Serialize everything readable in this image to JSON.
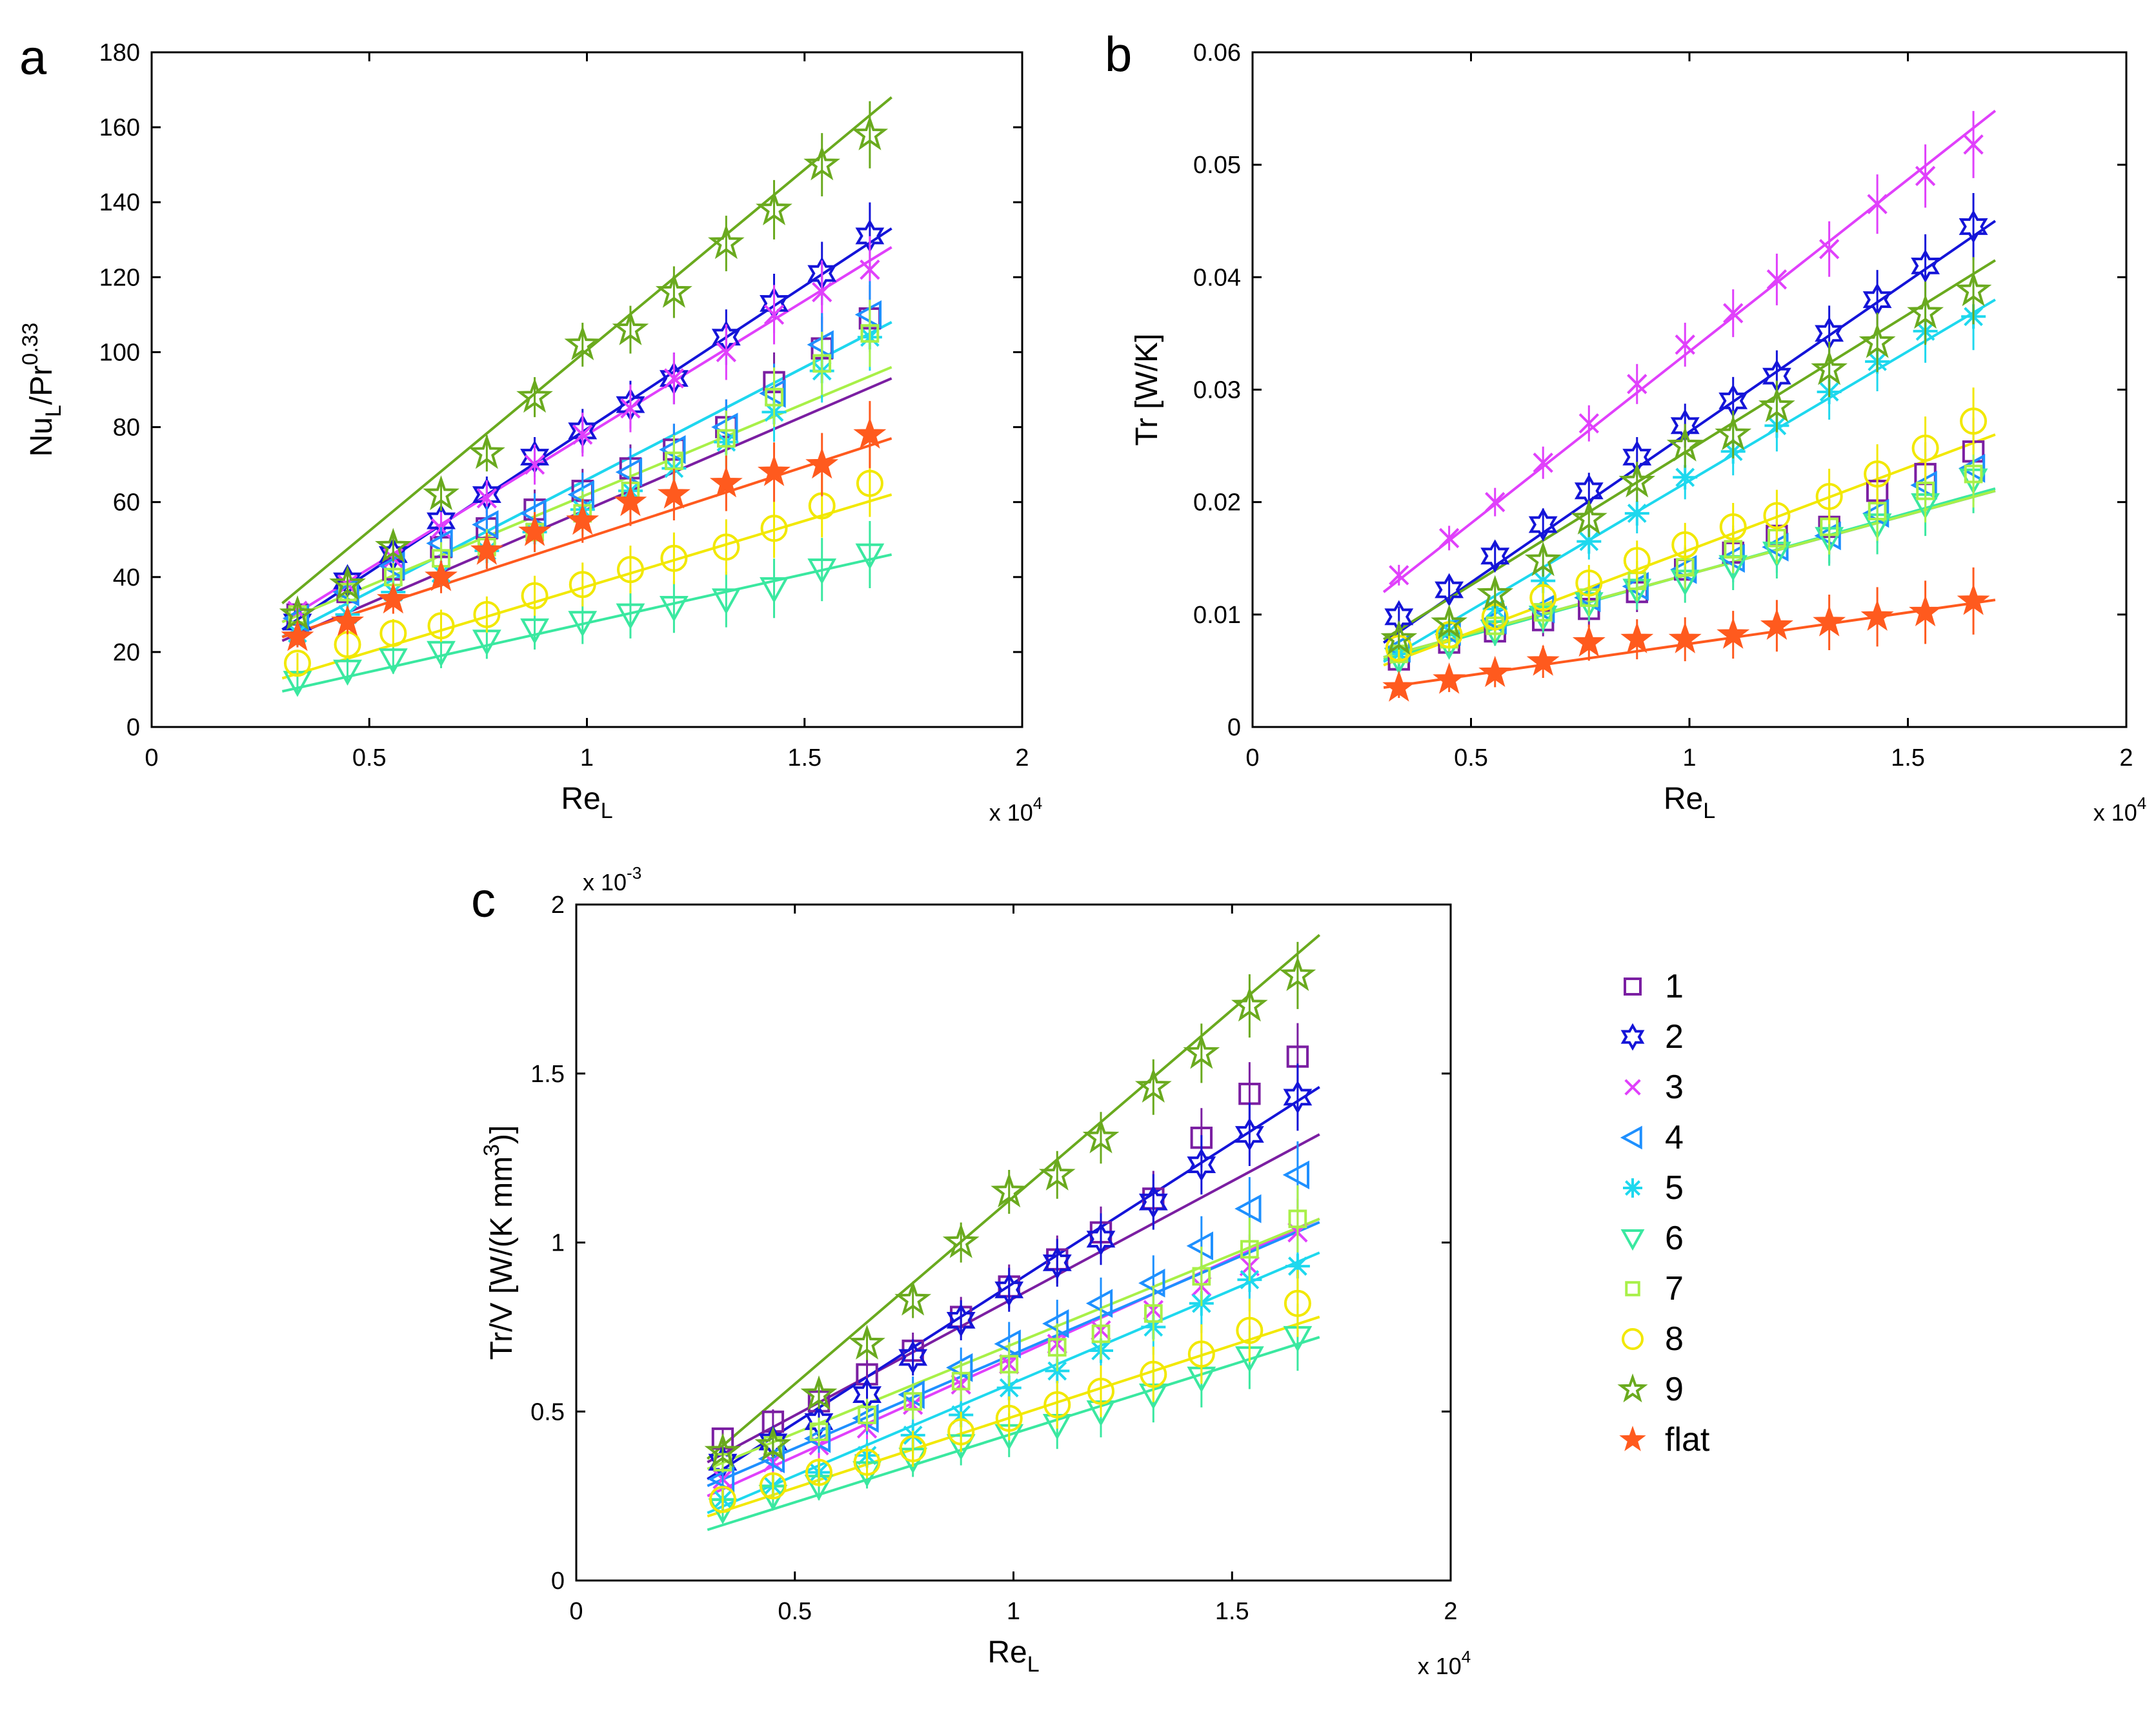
{
  "chart_data": [
    {
      "panel": "a",
      "type": "scatter",
      "xlabel": "Re",
      "xlabel_sub": "L",
      "x_exponent": "x 10",
      "x_exponent_power": "4",
      "ylabel": "Nu",
      "ylabel_sub": "L",
      "ylabel_mid": "/Pr",
      "ylabel_sup": "0.33",
      "xlim": [
        0,
        2
      ],
      "ylim": [
        0,
        180
      ],
      "xticks": [
        0,
        0.5,
        1,
        1.5,
        2
      ],
      "xtick_labels": [
        "0",
        "0.5",
        "1",
        "1.5",
        "2"
      ],
      "yticks": [
        0,
        20,
        40,
        60,
        80,
        100,
        120,
        140,
        160,
        180
      ],
      "ytick_labels": [
        "0",
        "20",
        "40",
        "60",
        "80",
        "100",
        "120",
        "140",
        "160",
        "180"
      ],
      "x": [
        0.335,
        0.45,
        0.555,
        0.665,
        0.77,
        0.88,
        0.99,
        1.1,
        1.2,
        1.32,
        1.43,
        1.54,
        1.65
      ],
      "series": [
        {
          "name": "1",
          "values": [
            30,
            36,
            42,
            48,
            53,
            58,
            63,
            69,
            74,
            80,
            92,
            101,
            109
          ],
          "fit": [
            0.3,
            23,
            1.7,
            93
          ]
        },
        {
          "name": "2",
          "values": [
            28,
            39,
            46,
            55,
            62,
            72,
            79,
            86,
            93,
            104,
            113,
            121,
            131
          ],
          "fit": [
            0.3,
            26,
            1.7,
            133
          ]
        },
        {
          "name": "3",
          "values": [
            31,
            38,
            45,
            53,
            61,
            70,
            78,
            85,
            93,
            100,
            110,
            116,
            122
          ],
          "fit": [
            0.3,
            28,
            1.7,
            128
          ]
        },
        {
          "name": "4",
          "values": [
            29,
            36,
            43,
            49,
            54,
            57,
            62,
            68,
            74,
            80,
            89,
            102,
            110
          ],
          "fit": [
            0.3,
            24,
            1.7,
            108
          ]
        },
        {
          "name": "5",
          "values": [
            25,
            30,
            36,
            41,
            47,
            52,
            58,
            63,
            69,
            76,
            84,
            95,
            104
          ],
          "fit": [
            0.3,
            24,
            1.7,
            108
          ]
        },
        {
          "name": "6",
          "values": [
            12,
            15,
            18,
            20,
            23,
            26,
            28,
            30,
            32,
            34,
            37,
            42,
            46
          ],
          "fit": [
            0.3,
            9.5,
            1.7,
            46
          ]
        },
        {
          "name": "7",
          "values": [
            30,
            36,
            40,
            45,
            48,
            52,
            57,
            63,
            71,
            77,
            88,
            97,
            105
          ],
          "fit": [
            0.3,
            28,
            1.7,
            96
          ]
        },
        {
          "name": "8",
          "values": [
            17,
            22,
            25,
            27,
            30,
            35,
            38,
            42,
            45,
            48,
            53,
            59,
            65
          ],
          "fit": [
            0.3,
            13,
            1.7,
            62
          ]
        },
        {
          "name": "9",
          "values": [
            30,
            38,
            48,
            62,
            73,
            88,
            102,
            106,
            116,
            129,
            138,
            150,
            158
          ],
          "fit": [
            0.3,
            33,
            1.7,
            168
          ]
        },
        {
          "name": "flat",
          "values": [
            24,
            28,
            34,
            40,
            47,
            52,
            55,
            60,
            62,
            65,
            68,
            70,
            78
          ],
          "fit": [
            0.3,
            24,
            1.7,
            77
          ]
        }
      ]
    },
    {
      "panel": "b",
      "type": "scatter",
      "xlabel": "Re",
      "xlabel_sub": "L",
      "x_exponent": "x 10",
      "x_exponent_power": "4",
      "ylabel": "Tr [W/K]",
      "xlim": [
        0,
        2
      ],
      "ylim": [
        0,
        0.06
      ],
      "xticks": [
        0,
        0.5,
        1,
        1.5,
        2
      ],
      "xtick_labels": [
        "0",
        "0.5",
        "1",
        "1.5",
        "2"
      ],
      "yticks": [
        0,
        0.01,
        0.02,
        0.03,
        0.04,
        0.05,
        0.06
      ],
      "ytick_labels": [
        "0",
        "0.01",
        "0.02",
        "0.03",
        "0.04",
        "0.05",
        "0.06"
      ],
      "x": [
        0.335,
        0.45,
        0.555,
        0.665,
        0.77,
        0.88,
        0.99,
        1.1,
        1.2,
        1.32,
        1.43,
        1.54,
        1.65
      ],
      "series": [
        {
          "name": "1",
          "values": [
            0.006,
            0.0075,
            0.0085,
            0.0095,
            0.0105,
            0.012,
            0.014,
            0.0155,
            0.017,
            0.0178,
            0.021,
            0.0225,
            0.0245
          ],
          "fit": [
            0.3,
            0.0062,
            1.7,
            0.021
          ]
        },
        {
          "name": "2",
          "values": [
            0.0098,
            0.0122,
            0.0152,
            0.018,
            0.021,
            0.024,
            0.0268,
            0.029,
            0.0312,
            0.035,
            0.038,
            0.041,
            0.0445
          ],
          "fit": [
            0.3,
            0.0075,
            1.7,
            0.045
          ]
        },
        {
          "name": "3",
          "values": [
            0.0135,
            0.0168,
            0.02,
            0.0235,
            0.027,
            0.0305,
            0.034,
            0.0368,
            0.0398,
            0.0425,
            0.0465,
            0.049,
            0.0518
          ],
          "fit": [
            0.3,
            0.012,
            1.7,
            0.0548
          ]
        },
        {
          "name": "4",
          "values": [
            0.007,
            0.0085,
            0.0095,
            0.0105,
            0.0115,
            0.0125,
            0.014,
            0.015,
            0.016,
            0.017,
            0.019,
            0.0215,
            0.023
          ],
          "fit": [
            0.3,
            0.0062,
            1.7,
            0.021
          ]
        },
        {
          "name": "5",
          "values": [
            0.0065,
            0.0085,
            0.0105,
            0.013,
            0.0165,
            0.019,
            0.0222,
            0.0245,
            0.0268,
            0.0298,
            0.0325,
            0.0352,
            0.0365
          ],
          "fit": [
            0.3,
            0.0058,
            1.7,
            0.038
          ]
        },
        {
          "name": "6",
          "values": [
            0.006,
            0.0073,
            0.0085,
            0.0098,
            0.011,
            0.0122,
            0.013,
            0.0143,
            0.0155,
            0.0168,
            0.018,
            0.0198,
            0.022
          ],
          "fit": [
            0.3,
            0.006,
            1.7,
            0.0212
          ]
        },
        {
          "name": "7",
          "values": [
            0.0065,
            0.0078,
            0.009,
            0.0102,
            0.0115,
            0.013,
            0.0142,
            0.0158,
            0.0168,
            0.0178,
            0.0192,
            0.021,
            0.0225
          ],
          "fit": [
            0.3,
            0.0062,
            1.7,
            0.021
          ]
        },
        {
          "name": "8",
          "values": [
            0.007,
            0.0082,
            0.0098,
            0.0115,
            0.0128,
            0.0148,
            0.0162,
            0.0178,
            0.0188,
            0.0205,
            0.0225,
            0.0248,
            0.0272
          ],
          "fit": [
            0.3,
            0.0055,
            1.7,
            0.026
          ]
        },
        {
          "name": "9",
          "values": [
            0.0078,
            0.0092,
            0.0118,
            0.0148,
            0.0185,
            0.0218,
            0.025,
            0.026,
            0.0285,
            0.0318,
            0.0342,
            0.0368,
            0.0388
          ],
          "fit": [
            0.3,
            0.0078,
            1.7,
            0.0415
          ]
        },
        {
          "name": "flat",
          "values": [
            0.0035,
            0.0042,
            0.0048,
            0.0058,
            0.0075,
            0.0078,
            0.0078,
            0.0082,
            0.009,
            0.0093,
            0.0098,
            0.0102,
            0.0112
          ],
          "fit": [
            0.3,
            0.0035,
            1.7,
            0.0113
          ]
        }
      ]
    },
    {
      "panel": "c",
      "type": "scatter",
      "xlabel": "Re",
      "xlabel_sub": "L",
      "x_exponent": "x 10",
      "x_exponent_power": "4",
      "y_exponent": "x 10",
      "y_exponent_power": "-3",
      "ylabel": "Tr/V [W/(K mm",
      "ylabel_sup": "3",
      "ylabel_end": ")]",
      "xlim": [
        0,
        2
      ],
      "ylim": [
        0,
        2
      ],
      "xticks": [
        0,
        0.5,
        1,
        1.5,
        2
      ],
      "xtick_labels": [
        "0",
        "0.5",
        "1",
        "1.5",
        "2"
      ],
      "yticks": [
        0,
        0.5,
        1,
        1.5,
        2
      ],
      "ytick_labels": [
        "0",
        "0.5",
        "1",
        "1.5",
        "2"
      ],
      "x": [
        0.335,
        0.45,
        0.555,
        0.665,
        0.77,
        0.88,
        0.99,
        1.1,
        1.2,
        1.32,
        1.43,
        1.54,
        1.65
      ],
      "series": [
        {
          "name": "1",
          "values": [
            0.42,
            0.47,
            0.53,
            0.61,
            0.68,
            0.78,
            0.87,
            0.95,
            1.03,
            1.13,
            1.31,
            1.44,
            1.55
          ],
          "fit": [
            0.3,
            0.35,
            1.7,
            1.32
          ]
        },
        {
          "name": "2",
          "values": [
            0.35,
            0.41,
            0.47,
            0.55,
            0.66,
            0.77,
            0.86,
            0.94,
            1.01,
            1.12,
            1.23,
            1.32,
            1.43
          ],
          "fit": [
            0.3,
            0.3,
            1.7,
            1.46
          ]
        },
        {
          "name": "3",
          "values": [
            0.3,
            0.35,
            0.4,
            0.45,
            0.52,
            0.58,
            0.64,
            0.7,
            0.74,
            0.8,
            0.87,
            0.93,
            1.03
          ],
          "fit": [
            0.3,
            0.25,
            1.7,
            1.07
          ]
        },
        {
          "name": "4",
          "values": [
            0.3,
            0.36,
            0.42,
            0.48,
            0.55,
            0.63,
            0.7,
            0.76,
            0.82,
            0.88,
            0.99,
            1.1,
            1.2
          ],
          "fit": [
            0.3,
            0.28,
            1.7,
            1.06
          ]
        },
        {
          "name": "5",
          "values": [
            0.24,
            0.28,
            0.32,
            0.37,
            0.43,
            0.49,
            0.57,
            0.62,
            0.68,
            0.75,
            0.82,
            0.89,
            0.93
          ],
          "fit": [
            0.3,
            0.2,
            1.7,
            0.97
          ]
        },
        {
          "name": "6",
          "values": [
            0.21,
            0.25,
            0.28,
            0.32,
            0.36,
            0.4,
            0.43,
            0.46,
            0.5,
            0.55,
            0.6,
            0.66,
            0.72
          ],
          "fit": [
            0.3,
            0.15,
            1.7,
            0.72
          ]
        },
        {
          "name": "7",
          "values": [
            0.35,
            0.4,
            0.44,
            0.49,
            0.53,
            0.59,
            0.64,
            0.69,
            0.73,
            0.79,
            0.9,
            0.98,
            1.07
          ],
          "fit": [
            0.3,
            0.33,
            1.7,
            1.07
          ]
        },
        {
          "name": "8",
          "values": [
            0.24,
            0.28,
            0.32,
            0.35,
            0.39,
            0.44,
            0.48,
            0.52,
            0.56,
            0.61,
            0.67,
            0.74,
            0.82
          ],
          "fit": [
            0.3,
            0.19,
            1.7,
            0.78
          ]
        },
        {
          "name": "9",
          "values": [
            0.38,
            0.4,
            0.55,
            0.7,
            0.83,
            1.0,
            1.15,
            1.2,
            1.31,
            1.46,
            1.56,
            1.7,
            1.79
          ],
          "fit": [
            0.3,
            0.36,
            1.7,
            1.91
          ]
        },
        {
          "name": "flat",
          "values": [],
          "fit": null
        }
      ]
    }
  ],
  "panel_labels": {
    "a": "a",
    "b": "b",
    "c": "c"
  },
  "legend": {
    "entries": [
      {
        "label": "1",
        "marker": "square",
        "color": "#7B1FA2"
      },
      {
        "label": "2",
        "marker": "hexagram",
        "color": "#1414D8"
      },
      {
        "label": "3",
        "marker": "x",
        "color": "#E040FB"
      },
      {
        "label": "4",
        "marker": "triangle-left",
        "color": "#1E90FF"
      },
      {
        "label": "5",
        "marker": "asterisk",
        "color": "#1ED8EE"
      },
      {
        "label": "6",
        "marker": "triangle-down",
        "color": "#3AE8A0"
      },
      {
        "label": "7",
        "marker": "square-small",
        "color": "#A8F048"
      },
      {
        "label": "8",
        "marker": "circle",
        "color": "#F2E800"
      },
      {
        "label": "9",
        "marker": "pentagram",
        "color": "#6AAA1E"
      },
      {
        "label": "flat",
        "marker": "pentagram-filled",
        "color": "#FF5A1E"
      }
    ]
  }
}
